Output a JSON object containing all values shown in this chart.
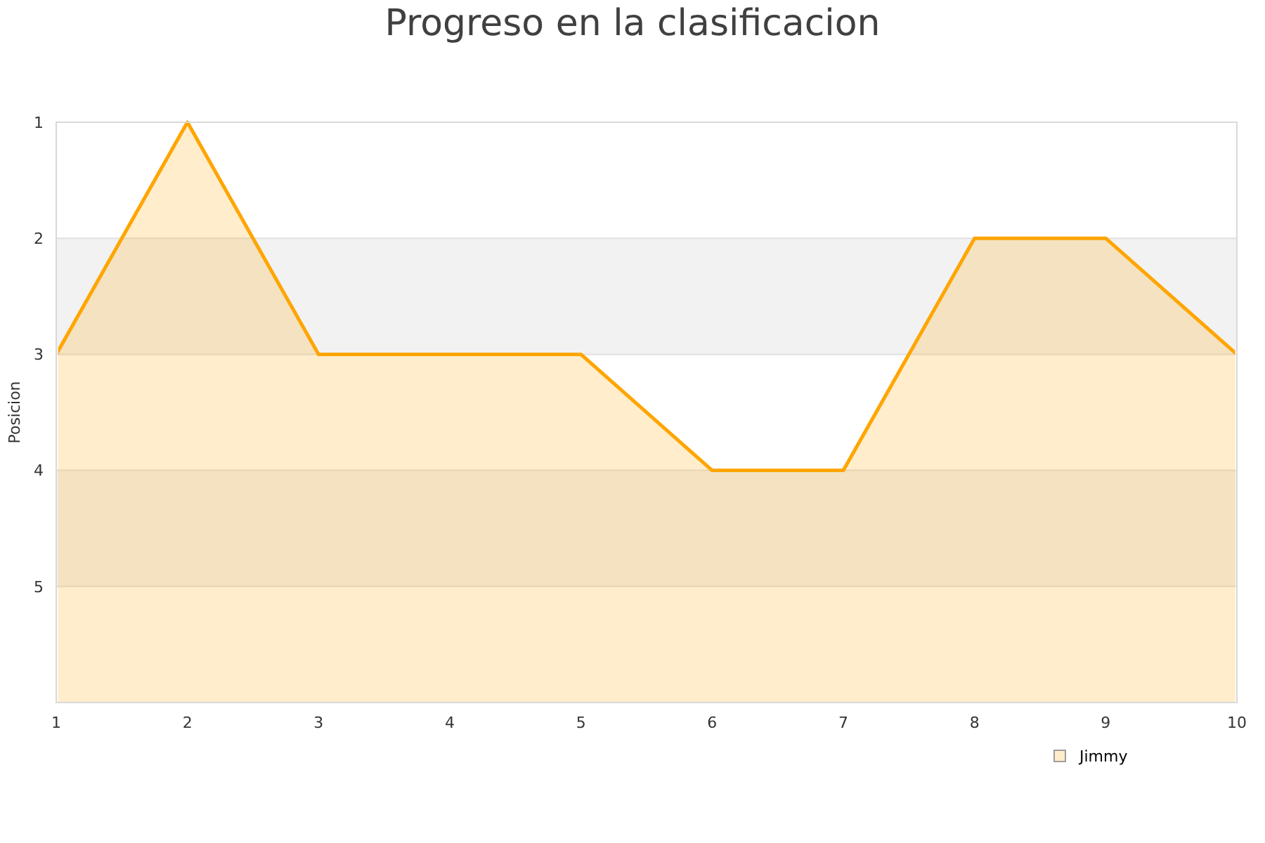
{
  "chart_data": {
    "type": "area",
    "title": "Progreso en la clasificacion",
    "ylabel": "Posicion",
    "x": [
      1,
      2,
      3,
      4,
      5,
      6,
      7,
      8,
      9,
      10
    ],
    "series": [
      {
        "name": "Jimmy",
        "color": "#ffa500",
        "values": [
          3,
          1,
          3,
          3,
          3,
          4,
          4,
          2,
          2,
          3
        ]
      }
    ],
    "xlim": [
      1,
      10
    ],
    "xticks": [
      1,
      2,
      3,
      4,
      5,
      6,
      7,
      8,
      9,
      10
    ],
    "ylim": [
      6,
      1
    ],
    "yticks": [
      1,
      2,
      3,
      4,
      5
    ],
    "bands": [
      {
        "axis": "y",
        "from": 2,
        "to": 3,
        "color": "#f2f2f2"
      },
      {
        "axis": "y",
        "from": 4,
        "to": 5,
        "color": "#f2f2f2"
      }
    ],
    "grid": "y",
    "legend": "bottom right",
    "marker": "none",
    "line_style": "solid"
  }
}
